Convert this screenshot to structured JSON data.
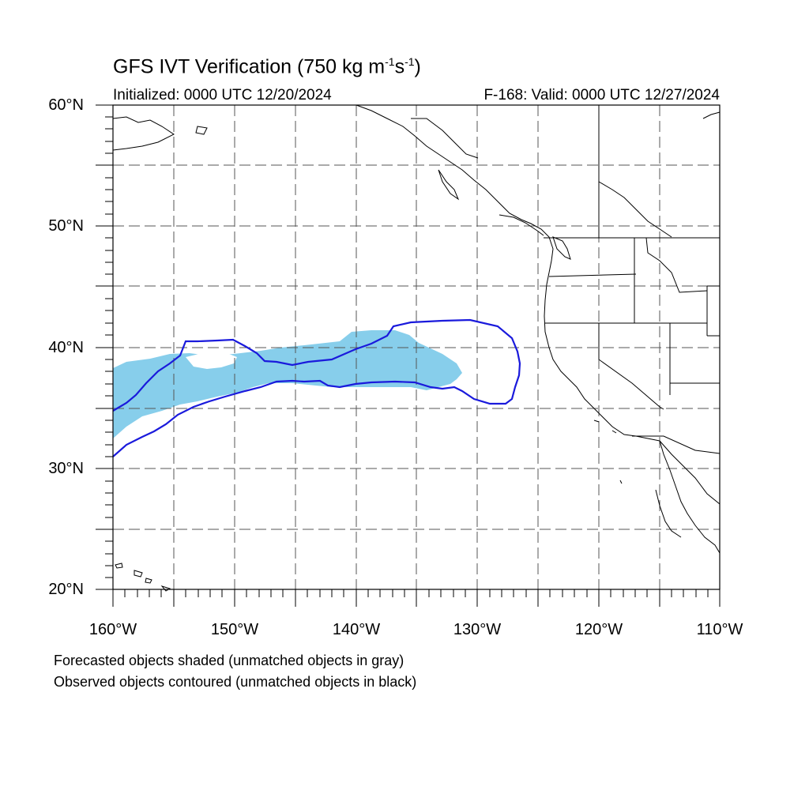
{
  "title": {
    "main": "GFS IVT Verification (750 kg m",
    "exp1": "-1",
    "mid": "s",
    "exp2": "-1",
    "end": ")"
  },
  "subtitle_left": "Initialized: 0000 UTC 12/20/2024",
  "subtitle_right": "F-168: Valid: 0000 UTC 12/27/2024",
  "lat_labels": [
    "60°N",
    "50°N",
    "40°N",
    "30°N",
    "20°N"
  ],
  "lon_labels": [
    "160°W",
    "150°W",
    "140°W",
    "130°W",
    "120°W",
    "110°W"
  ],
  "caption_line1": "Forecasted objects shaded (unmatched objects in gray)",
  "caption_line2": "Observed objects contoured (unmatched objects in black)",
  "colors": {
    "forecast_fill": "#87ceeb",
    "observed_contour": "#1a1adc",
    "coastline": "#000000",
    "grid": "#555555"
  },
  "map_extent": {
    "lon_min": -160,
    "lon_max": -110,
    "lat_min": 20,
    "lat_max": 60
  }
}
